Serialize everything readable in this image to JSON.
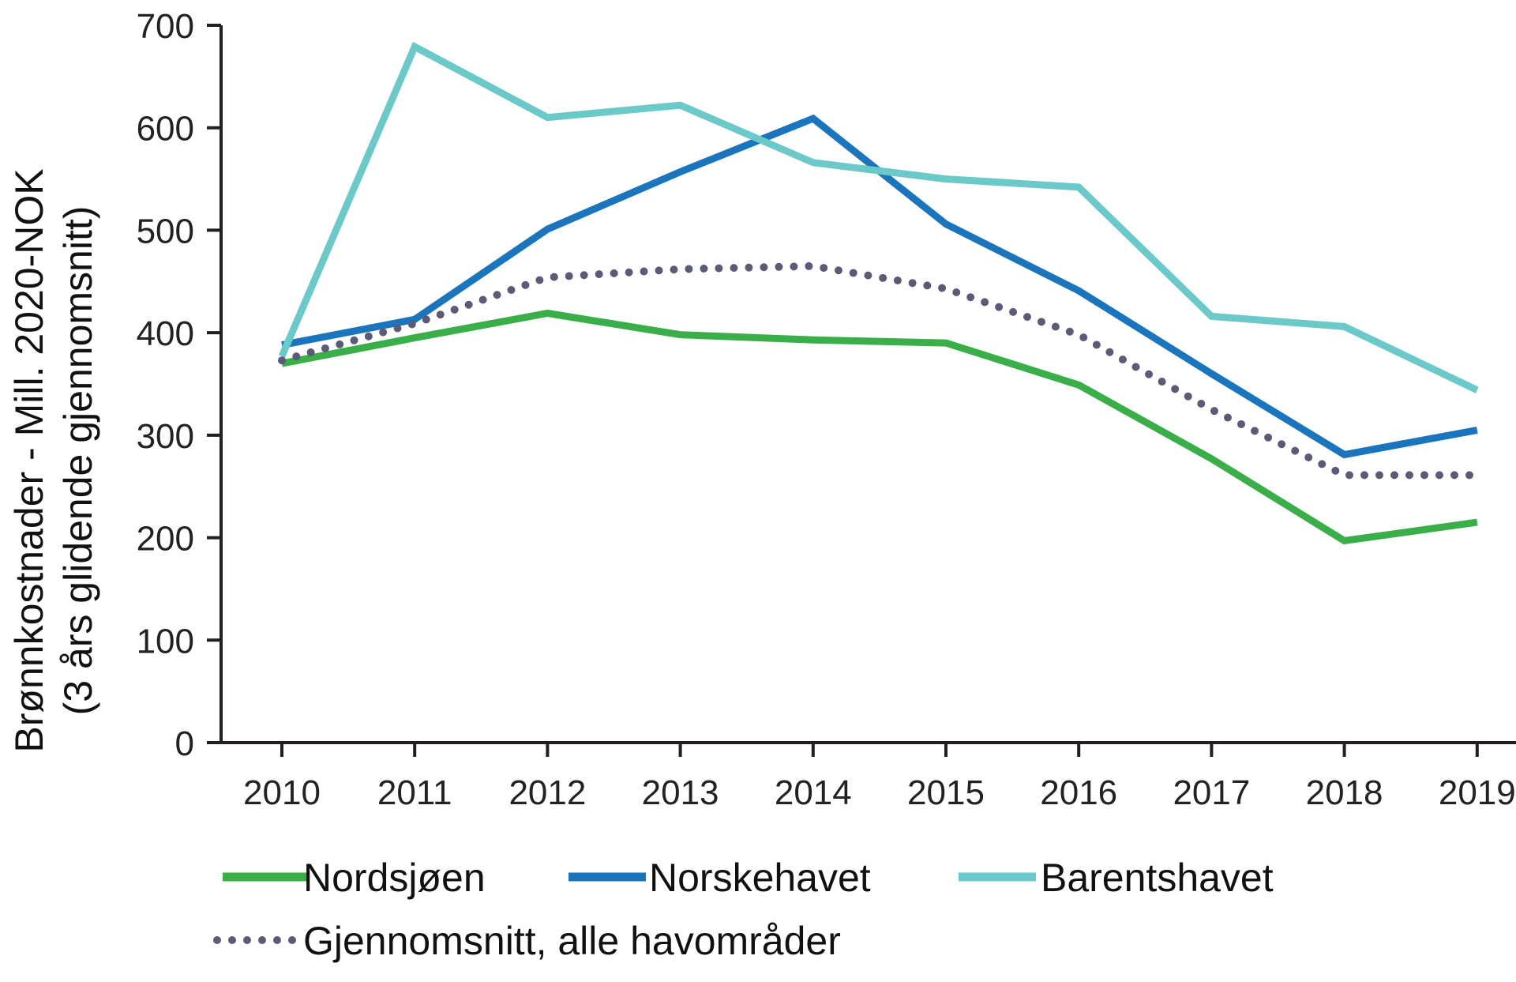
{
  "chart_data": {
    "type": "line",
    "title": "",
    "xlabel": "",
    "ylabel_line1": "Brønnkostnader - Mill. 2020-NOK",
    "ylabel_line2": "(3 års glidende gjennomsnitt)",
    "categories": [
      "2010",
      "2011",
      "2012",
      "2013",
      "2014",
      "2015",
      "2016",
      "2017",
      "2018",
      "2019"
    ],
    "ylim": [
      0,
      700
    ],
    "yticks": [
      "0",
      "100",
      "200",
      "300",
      "400",
      "500",
      "600",
      "700"
    ],
    "grid": false,
    "legend_position": "bottom",
    "series": [
      {
        "name": "Nordsjøen",
        "color": "#3aae49",
        "style": "solid",
        "values": [
          370,
          395,
          419,
          398,
          393,
          390,
          349,
          277,
          197,
          215
        ]
      },
      {
        "name": "Norskehavet",
        "color": "#1a75bc",
        "style": "solid",
        "values": [
          388,
          413,
          501,
          557,
          609,
          506,
          441,
          360,
          281,
          305
        ]
      },
      {
        "name": "Barentshavet",
        "color": "#6cc9c9",
        "style": "solid",
        "values": [
          377,
          679,
          610,
          622,
          566,
          550,
          542,
          416,
          406,
          344
        ]
      },
      {
        "name": "Gjennomsnitt, alle havområder",
        "color": "#5b5b78",
        "style": "dotted",
        "values": [
          373,
          409,
          454,
          462,
          465,
          443,
          398,
          325,
          261,
          261
        ]
      }
    ]
  }
}
